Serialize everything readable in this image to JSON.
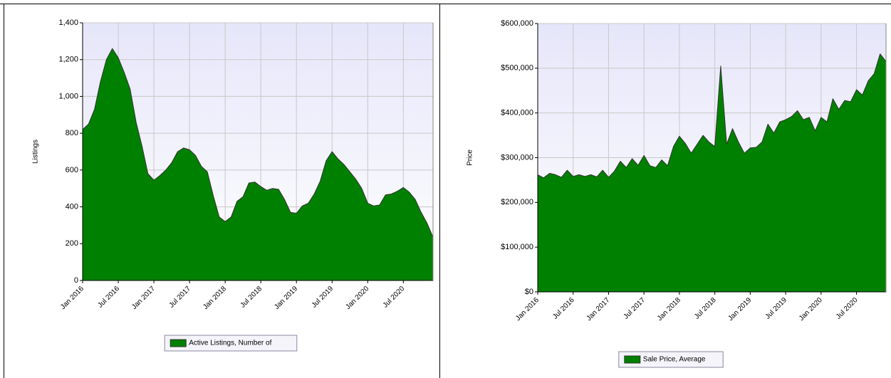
{
  "chart_data": [
    {
      "type": "area",
      "ylabel": "Listings",
      "categories": [
        "Jan 2016",
        null,
        null,
        null,
        null,
        null,
        "Jul 2016",
        null,
        null,
        null,
        null,
        null,
        "Jan 2017",
        null,
        null,
        null,
        null,
        null,
        "Jul 2017",
        null,
        null,
        null,
        null,
        null,
        "Jan 2018",
        null,
        null,
        null,
        null,
        null,
        "Jul 2018",
        null,
        null,
        null,
        null,
        null,
        "Jan 2019",
        null,
        null,
        null,
        null,
        null,
        "Jul 2019",
        null,
        null,
        null,
        null,
        null,
        "Jan 2020",
        null,
        null,
        null,
        null,
        null,
        "Jul 2020",
        null,
        null,
        null,
        null,
        null
      ],
      "series": [
        {
          "name": "Active Listings, Number of",
          "color": "#008000",
          "values": [
            820,
            850,
            930,
            1080,
            1200,
            1260,
            1210,
            1130,
            1040,
            860,
            730,
            580,
            545,
            570,
            600,
            640,
            700,
            720,
            710,
            680,
            620,
            590,
            460,
            345,
            320,
            345,
            430,
            455,
            530,
            535,
            510,
            490,
            500,
            495,
            440,
            370,
            365,
            405,
            420,
            470,
            540,
            650,
            700,
            660,
            630,
            590,
            550,
            500,
            420,
            405,
            410,
            465,
            470,
            485,
            505,
            480,
            440,
            370,
            310,
            235
          ]
        }
      ],
      "ylim": [
        0,
        1400
      ],
      "yticks": [
        0,
        200,
        400,
        600,
        800,
        {
          "value": 1000,
          "label": "1,000"
        },
        {
          "value": 1200,
          "label": "1,200"
        },
        {
          "value": 1400,
          "label": "1,400"
        }
      ],
      "grid": true
    },
    {
      "type": "area",
      "ylabel": "Price",
      "categories": [
        "Jan 2016",
        null,
        null,
        null,
        null,
        null,
        "Jul 2016",
        null,
        null,
        null,
        null,
        null,
        "Jan 2017",
        null,
        null,
        null,
        null,
        null,
        "Jul 2017",
        null,
        null,
        null,
        null,
        null,
        "Jan 2018",
        null,
        null,
        null,
        null,
        null,
        "Jul 2018",
        null,
        null,
        null,
        null,
        null,
        "Jan 2019",
        null,
        null,
        null,
        null,
        null,
        "Jul 2019",
        null,
        null,
        null,
        null,
        null,
        "Jan 2020",
        null,
        null,
        null,
        null,
        null,
        "Jul 2020",
        null,
        null,
        null,
        null,
        null
      ],
      "series": [
        {
          "name": "Sale Price, Average",
          "color": "#008000",
          "values": [
            262000,
            255000,
            265000,
            262000,
            256000,
            272000,
            258000,
            262000,
            258000,
            262000,
            257000,
            272000,
            256000,
            270000,
            292000,
            278000,
            298000,
            283000,
            305000,
            282000,
            278000,
            295000,
            282000,
            325000,
            348000,
            332000,
            310000,
            330000,
            350000,
            335000,
            325000,
            505000,
            330000,
            365000,
            335000,
            310000,
            322000,
            323000,
            335000,
            375000,
            355000,
            380000,
            385000,
            392000,
            405000,
            385000,
            390000,
            360000,
            390000,
            380000,
            432000,
            408000,
            428000,
            425000,
            452000,
            440000,
            472000,
            488000,
            532000,
            515000
          ]
        }
      ],
      "ylim": [
        0,
        600000
      ],
      "yticks": [
        {
          "value": 0,
          "label": "$0"
        },
        {
          "value": 100000,
          "label": "$100,000"
        },
        {
          "value": 200000,
          "label": "$200,000"
        },
        {
          "value": 300000,
          "label": "$300,000"
        },
        {
          "value": 400000,
          "label": "$400,000"
        },
        {
          "value": 500000,
          "label": "$500,000"
        },
        {
          "value": 600000,
          "label": "$600,000"
        }
      ],
      "grid": true
    }
  ]
}
